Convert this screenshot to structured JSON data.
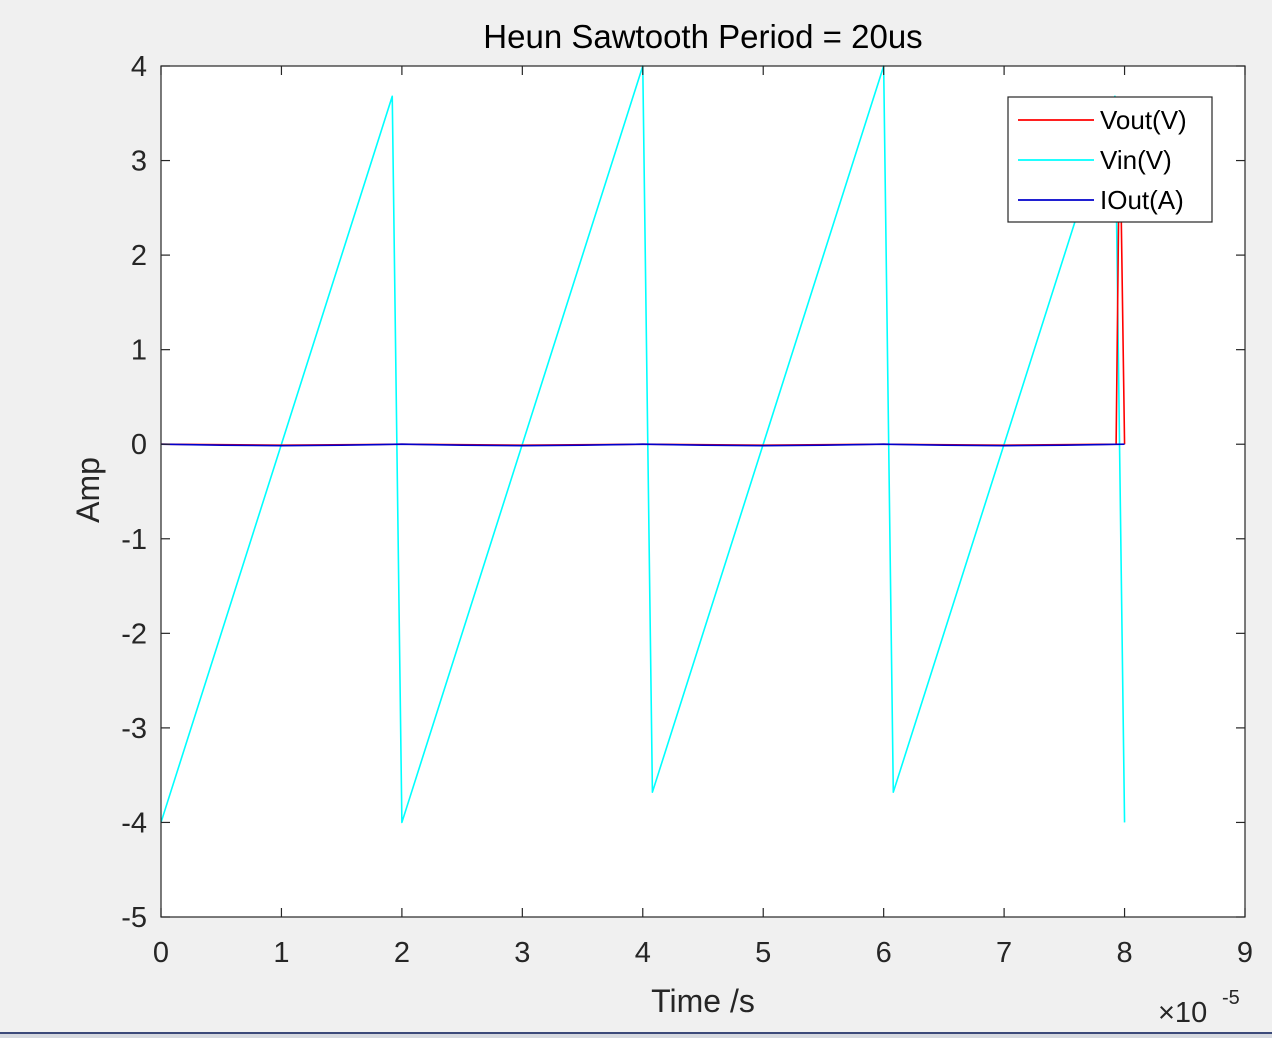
{
  "figure": {
    "background": "#f0f0f0",
    "axes_background": "#ffffff"
  },
  "chart_data": {
    "type": "line",
    "title": "Heun Sawtooth Period = 20us",
    "xlabel": "Time /s",
    "ylabel": "Amp",
    "xlim": [
      0,
      9
    ],
    "ylim": [
      -5,
      4
    ],
    "x_scale_label": "×10",
    "x_scale_exponent": "-5",
    "x_ticks": [
      0,
      1,
      2,
      3,
      4,
      5,
      6,
      7,
      8,
      9
    ],
    "x_tick_labels": [
      "0",
      "1",
      "2",
      "3",
      "4",
      "5",
      "6",
      "7",
      "8",
      "9"
    ],
    "y_ticks": [
      -5,
      -4,
      -3,
      -2,
      -1,
      0,
      1,
      2,
      3,
      4
    ],
    "y_tick_labels": [
      "-5",
      "-4",
      "-3",
      "-2",
      "-1",
      "0",
      "1",
      "2",
      "3",
      "4"
    ],
    "grid": false,
    "legend_position": "top-right",
    "series": [
      {
        "name": "Vout(V)",
        "color": "#ff0000",
        "x": [
          0,
          1.0,
          2.0,
          3.0,
          4.0,
          5.0,
          6.0,
          7.0,
          7.93,
          7.96,
          8.0
        ],
        "y": [
          0,
          -0.01,
          0.0,
          -0.01,
          0.0,
          -0.01,
          0.0,
          -0.01,
          0.0,
          3.5,
          0.0
        ]
      },
      {
        "name": "Vin(V)",
        "color": "#00ffff",
        "x": [
          0,
          1.92,
          2.0,
          4.0,
          4.08,
          6.0,
          6.08,
          7.92,
          8.0
        ],
        "y": [
          -4.0,
          3.68,
          -4.0,
          4.0,
          -3.68,
          4.0,
          -3.68,
          3.68,
          -4.0
        ]
      },
      {
        "name": "IOut(A)",
        "color": "#0000cc",
        "x": [
          0,
          0.5,
          1.0,
          1.5,
          2.0,
          2.5,
          3.0,
          3.5,
          4.0,
          4.5,
          5.0,
          5.5,
          6.0,
          6.5,
          7.0,
          7.5,
          8.0
        ],
        "y": [
          0.0,
          -0.01,
          -0.015,
          -0.01,
          0.0,
          -0.01,
          -0.015,
          -0.01,
          0.0,
          -0.01,
          -0.015,
          -0.01,
          0.0,
          -0.01,
          -0.015,
          -0.01,
          0.0
        ]
      }
    ]
  }
}
